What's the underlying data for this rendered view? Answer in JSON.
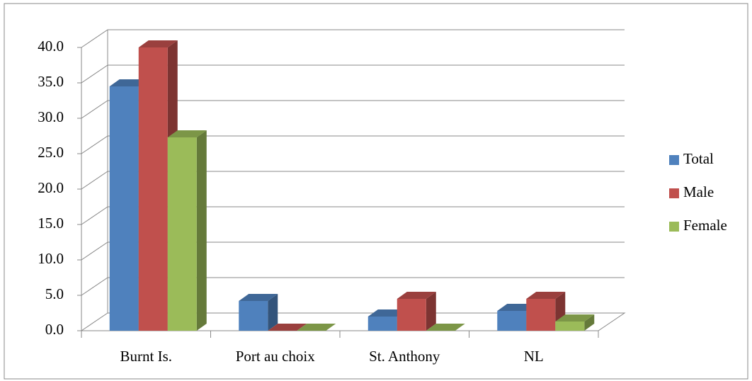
{
  "chart_data": {
    "type": "bar3d",
    "categories": [
      "Burnt Is.",
      "Port au choix",
      "St. Anthony",
      "NL"
    ],
    "series": [
      {
        "name": "Total",
        "color": "#4f81bd",
        "values": [
          34.5,
          4.2,
          2.0,
          2.8
        ]
      },
      {
        "name": "Male",
        "color": "#c0504d",
        "values": [
          40.0,
          0,
          4.5,
          4.5
        ]
      },
      {
        "name": "Female",
        "color": "#9bbb59",
        "values": [
          27.3,
          0,
          0,
          1.3
        ]
      }
    ],
    "ylim": [
      0,
      40
    ],
    "yticks": [
      {
        "value": 0,
        "label": "0.0"
      },
      {
        "value": 5,
        "label": "5.0"
      },
      {
        "value": 10,
        "label": "10.0"
      },
      {
        "value": 15,
        "label": "15.0"
      },
      {
        "value": 20,
        "label": "20.0"
      },
      {
        "value": 25,
        "label": "25.0"
      },
      {
        "value": 30,
        "label": "30.0"
      },
      {
        "value": 35,
        "label": "35.0"
      },
      {
        "value": 40,
        "label": "40.0"
      }
    ],
    "grid": true,
    "legend": "right"
  }
}
